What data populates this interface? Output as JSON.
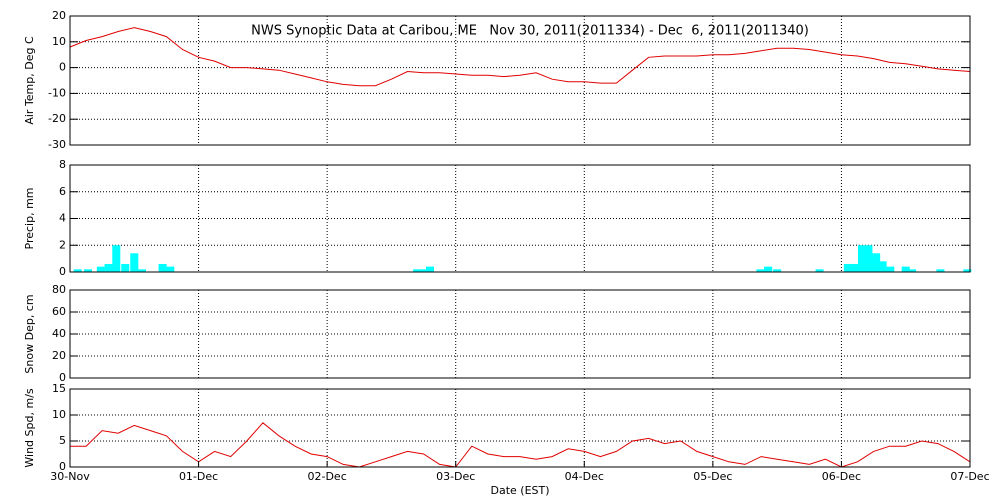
{
  "chart_data": [
    {
      "type": "line",
      "title": "NWS Synoptic Data at Caribou, ME   Nov 30, 2011(2011334) - Dec  6, 2011(2011340)",
      "ylabel": "Air Temp, Deg C",
      "color": "#e00000",
      "grid": true,
      "xlim": [
        0,
        7
      ],
      "ylim": [
        -30,
        20
      ],
      "yticks": [
        -30,
        -20,
        -10,
        0,
        10,
        20
      ],
      "x": [
        0,
        0.125,
        0.25,
        0.375,
        0.5,
        0.625,
        0.75,
        0.875,
        1,
        1.125,
        1.25,
        1.375,
        1.5,
        1.625,
        1.75,
        1.875,
        2,
        2.125,
        2.25,
        2.375,
        2.5,
        2.625,
        2.75,
        2.875,
        3,
        3.125,
        3.25,
        3.375,
        3.5,
        3.625,
        3.75,
        3.875,
        4,
        4.125,
        4.25,
        4.375,
        4.5,
        4.625,
        4.75,
        4.875,
        5,
        5.125,
        5.25,
        5.375,
        5.5,
        5.625,
        5.75,
        5.875,
        6,
        6.125,
        6.25,
        6.375,
        6.5,
        6.625,
        6.75,
        6.875,
        7
      ],
      "values": [
        8,
        10.5,
        12,
        14,
        15.5,
        14,
        12,
        7,
        4,
        2.5,
        0,
        0,
        -0.5,
        -1,
        -2.5,
        -4,
        -5.5,
        -6.5,
        -7,
        -7,
        -4.5,
        -1.5,
        -2,
        -2,
        -2.5,
        -3,
        -3,
        -3.5,
        -3,
        -2,
        -4.5,
        -5.5,
        -5.5,
        -6,
        -6,
        -1,
        4,
        4.5,
        4.5,
        4.5,
        5,
        5,
        5.5,
        6.5,
        7.5,
        7.5,
        7,
        6,
        5,
        4.5,
        3.5,
        2,
        1.5,
        0.5,
        -0.5,
        -1,
        -1.5
      ]
    },
    {
      "type": "bar",
      "ylabel": "Precip, mm",
      "color": "#00ffff",
      "grid": true,
      "xlim": [
        0,
        7
      ],
      "ylim": [
        0,
        8
      ],
      "yticks": [
        0,
        2,
        4,
        6,
        8
      ],
      "x": [
        0.06,
        0.14,
        0.24,
        0.3,
        0.36,
        0.43,
        0.5,
        0.56,
        0.72,
        0.78,
        2.7,
        2.76,
        2.8,
        5.37,
        5.43,
        5.5,
        5.83,
        6.05,
        6.11,
        6.16,
        6.21,
        6.27,
        6.32,
        6.38,
        6.5,
        6.55,
        6.77,
        6.98
      ],
      "values": [
        0.2,
        0.2,
        0.4,
        0.6,
        2,
        0.6,
        1.4,
        0.2,
        0.6,
        0.4,
        0.2,
        0.2,
        0.4,
        0.2,
        0.4,
        0.2,
        0.2,
        0.6,
        0.6,
        2,
        2,
        1.4,
        0.8,
        0.4,
        0.4,
        0.2,
        0.2,
        0.2
      ]
    },
    {
      "type": "line",
      "ylabel": "Snow Dep, cm",
      "color": "#e00000",
      "grid": true,
      "xlim": [
        0,
        7
      ],
      "ylim": [
        0,
        80
      ],
      "yticks": [
        0,
        20,
        40,
        60,
        80
      ]
    },
    {
      "type": "line",
      "ylabel": "Wind Spd, m/s",
      "xlabel": "Date (EST)",
      "color": "#e00000",
      "grid": true,
      "xlim": [
        0,
        7
      ],
      "ylim": [
        0,
        15
      ],
      "yticks": [
        0,
        5,
        10,
        15
      ],
      "xticks": [
        {
          "value": 0,
          "label": "30-Nov"
        },
        {
          "value": 1,
          "label": "01-Dec"
        },
        {
          "value": 2,
          "label": "02-Dec"
        },
        {
          "value": 3,
          "label": "03-Dec"
        },
        {
          "value": 4,
          "label": "04-Dec"
        },
        {
          "value": 5,
          "label": "05-Dec"
        },
        {
          "value": 6,
          "label": "06-Dec"
        },
        {
          "value": 7,
          "label": "07-Dec"
        }
      ],
      "x": [
        0,
        0.125,
        0.25,
        0.375,
        0.5,
        0.625,
        0.75,
        0.875,
        1,
        1.125,
        1.25,
        1.375,
        1.5,
        1.625,
        1.75,
        1.875,
        2,
        2.125,
        2.25,
        2.375,
        2.5,
        2.625,
        2.75,
        2.875,
        3,
        3.125,
        3.25,
        3.375,
        3.5,
        3.625,
        3.75,
        3.875,
        4,
        4.125,
        4.25,
        4.375,
        4.5,
        4.625,
        4.75,
        4.875,
        5,
        5.125,
        5.25,
        5.375,
        5.5,
        5.625,
        5.75,
        5.875,
        6,
        6.125,
        6.25,
        6.375,
        6.5,
        6.625,
        6.75,
        6.875,
        7
      ],
      "values": [
        4,
        4,
        7,
        6.5,
        8,
        7,
        6,
        3,
        1,
        3,
        2,
        5,
        8.5,
        6,
        4,
        2.5,
        2,
        0.5,
        0,
        1,
        2,
        3,
        2.5,
        0.5,
        0,
        4,
        2.5,
        2,
        2,
        1.5,
        2,
        3.5,
        3,
        2,
        3,
        5,
        5.5,
        4.5,
        5,
        3,
        2,
        1,
        0.5,
        2,
        1.5,
        1,
        0.5,
        1.5,
        0,
        1,
        3,
        4,
        4,
        5,
        4.5,
        3,
        1
      ]
    }
  ]
}
